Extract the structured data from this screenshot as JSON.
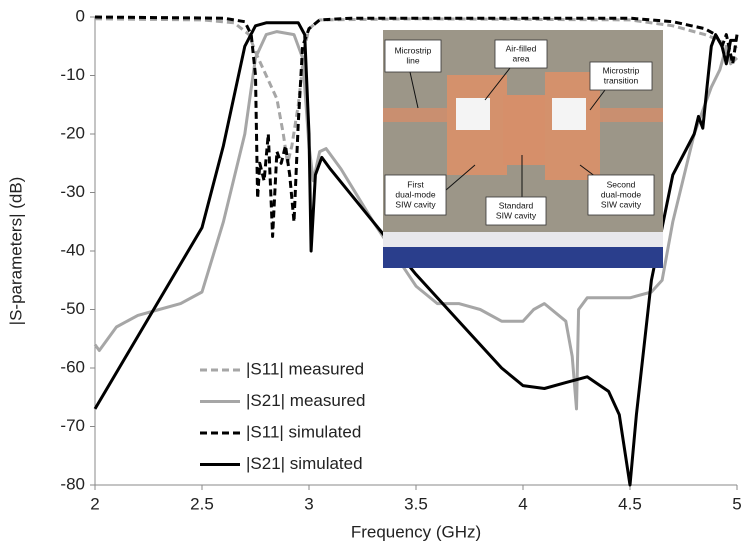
{
  "chart_data": {
    "type": "line",
    "xlabel": "Frequency (GHz)",
    "ylabel": "|S-parameters| (dB)",
    "xlim": [
      2,
      5
    ],
    "ylim": [
      -80,
      0
    ],
    "xticks": [
      2,
      2.5,
      3,
      3.5,
      4,
      4.5,
      5
    ],
    "yticks": [
      0,
      -10,
      -20,
      -30,
      -40,
      -50,
      -60,
      -70,
      -80
    ],
    "series": [
      {
        "name": "|S11| measured",
        "color": "#a6a6a6",
        "dash": true,
        "x": [
          2,
          2.5,
          2.65,
          2.72,
          2.75,
          2.8,
          2.85,
          2.88,
          2.9,
          2.92,
          2.95,
          2.98,
          3.0,
          3.05,
          3.5,
          4.5,
          4.7,
          4.85,
          4.92,
          4.95,
          5
        ],
        "values": [
          -0.3,
          -0.5,
          -1,
          -3,
          -6,
          -10,
          -14,
          -20,
          -25,
          -22,
          -15,
          -5,
          -2,
          -0.5,
          -0.3,
          -0.5,
          -1.5,
          -3,
          -4,
          -6,
          -5
        ]
      },
      {
        "name": "|S21| measured",
        "color": "#a6a6a6",
        "dash": false,
        "x": [
          2,
          2.02,
          2.1,
          2.2,
          2.3,
          2.4,
          2.5,
          2.6,
          2.7,
          2.75,
          2.8,
          2.85,
          2.93,
          2.97,
          3.0,
          3.02,
          3.05,
          3.08,
          3.15,
          3.3,
          3.5,
          3.6,
          3.7,
          3.8,
          3.9,
          4.0,
          4.05,
          4.1,
          4.2,
          4.23,
          4.25,
          4.26,
          4.3,
          4.5,
          4.6,
          4.65,
          4.7,
          4.8,
          4.88,
          4.92,
          4.95,
          4.97,
          5
        ],
        "values": [
          -56,
          -57,
          -53,
          -51,
          -50,
          -49,
          -47,
          -35,
          -20,
          -7,
          -3,
          -2.5,
          -3,
          -7,
          -22,
          -28,
          -23,
          -22.5,
          -26,
          -35,
          -46,
          -49,
          -49,
          -50,
          -52,
          -52,
          -50,
          -49,
          -52,
          -58,
          -67,
          -50,
          -48,
          -48,
          -47,
          -45,
          -35,
          -20,
          -12,
          -9,
          -5,
          -8,
          -7
        ]
      },
      {
        "name": "|S11| simulated",
        "color": "#000000",
        "dash": true,
        "x": [
          2,
          2.6,
          2.7,
          2.73,
          2.75,
          2.76,
          2.77,
          2.79,
          2.81,
          2.83,
          2.85,
          2.87,
          2.89,
          2.91,
          2.93,
          2.95,
          2.97,
          3.0,
          3.05,
          3.2,
          4.5,
          4.7,
          4.85,
          4.9,
          4.93,
          4.95,
          4.98,
          5
        ],
        "values": [
          0,
          -0.2,
          -0.8,
          -3,
          -10,
          -31,
          -25,
          -28,
          -20,
          -37.5,
          -23,
          -25,
          -22,
          -27,
          -35,
          -18,
          -5,
          -2,
          -0.5,
          -0.2,
          -0.2,
          -0.8,
          -2,
          -3,
          -5,
          -3,
          -8,
          -3
        ]
      },
      {
        "name": "|S21| simulated",
        "color": "#000000",
        "dash": false,
        "x": [
          2,
          2.5,
          2.6,
          2.7,
          2.75,
          2.8,
          2.95,
          2.98,
          3.0,
          3.01,
          3.03,
          3.06,
          3.1,
          3.3,
          3.5,
          3.7,
          3.9,
          4.0,
          4.1,
          4.2,
          4.3,
          4.4,
          4.45,
          4.5,
          4.53,
          4.6,
          4.7,
          4.8,
          4.82,
          4.84,
          4.86,
          4.88,
          4.9,
          4.93,
          4.95,
          4.97,
          5
        ],
        "values": [
          -67,
          -36,
          -22,
          -5,
          -1.5,
          -1,
          -1,
          -3,
          -20,
          -40,
          -27,
          -24,
          -26,
          -35,
          -44,
          -52,
          -60,
          -63,
          -63.5,
          -62.5,
          -61.5,
          -64,
          -68,
          -80,
          -68,
          -45,
          -27,
          -20,
          -17,
          -19,
          -12,
          -5,
          -3,
          -5,
          -8,
          -4,
          -4
        ]
      }
    ],
    "inset_labels": [
      [
        "Microstrip",
        "line"
      ],
      [
        "Air-filled",
        "area"
      ],
      [
        "Microstrip",
        "transition"
      ],
      [
        "First",
        "dual-mode",
        "SIW cavity"
      ],
      [
        "Standard",
        "SIW cavity"
      ],
      [
        "Second",
        "dual-mode",
        "SIW cavity"
      ]
    ]
  }
}
